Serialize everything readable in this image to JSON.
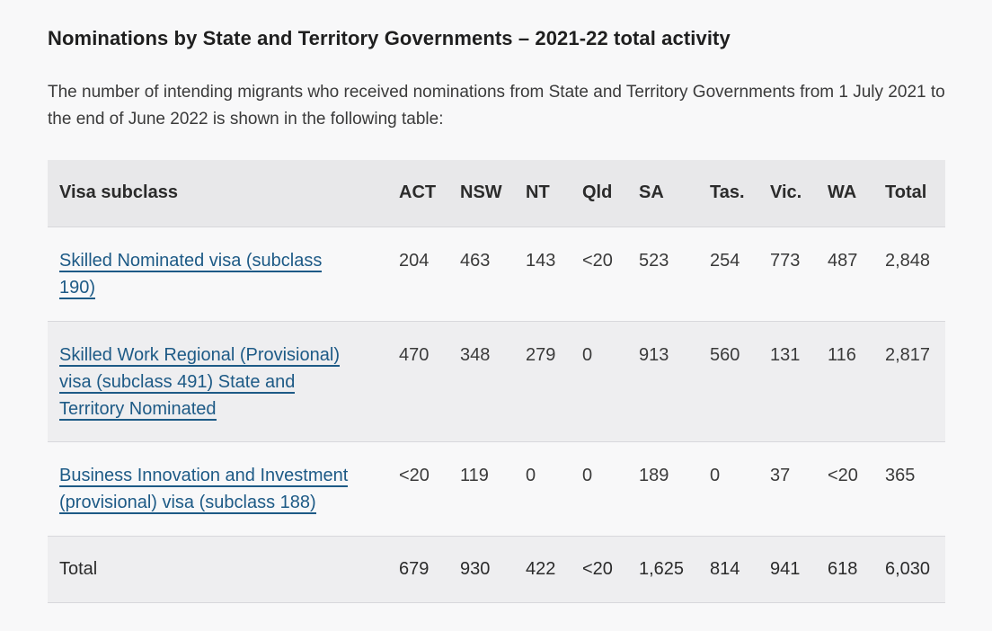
{
  "heading": "Nominations by State and Territory Governments – 2021-22 total activity",
  "intro": "The number of intending migrants who received nominations from State and Territory Governments from 1 July 2021 to the end of June 2022 is shown in the following table:",
  "table": {
    "headers": [
      "Visa subclass",
      "ACT",
      "NSW",
      "NT",
      "Qld",
      "SA",
      "Tas.",
      "Vic.",
      "WA",
      "Total"
    ],
    "rows": [
      {
        "visa": "Skilled Nominated visa (subclass 190)",
        "values": [
          "204",
          "463",
          "143",
          "<20",
          "523",
          "254",
          "773",
          "487",
          "2,848"
        ]
      },
      {
        "visa": "Skilled Work Regional (Provisional) visa (subclass 491) State and Territory Nominated",
        "values": [
          "470",
          "348",
          "279",
          "0",
          "913",
          "560",
          "131",
          "116",
          "2,817"
        ]
      },
      {
        "visa": "Business Innovation and Investment (provisional) visa (subclass 188)",
        "values": [
          "<20",
          "119",
          "0",
          "0",
          "189",
          "0",
          "37",
          "<20",
          "365"
        ]
      }
    ],
    "total": {
      "label": "Total",
      "values": [
        "679",
        "930",
        "422",
        "<20",
        "1,625",
        "814",
        "941",
        "618",
        "6,030"
      ]
    }
  },
  "colors": {
    "link": "#1d5a86",
    "header_bg": "#e8e8ea",
    "stripe_bg": "#eeeef0",
    "page_bg": "#f8f8f9"
  }
}
